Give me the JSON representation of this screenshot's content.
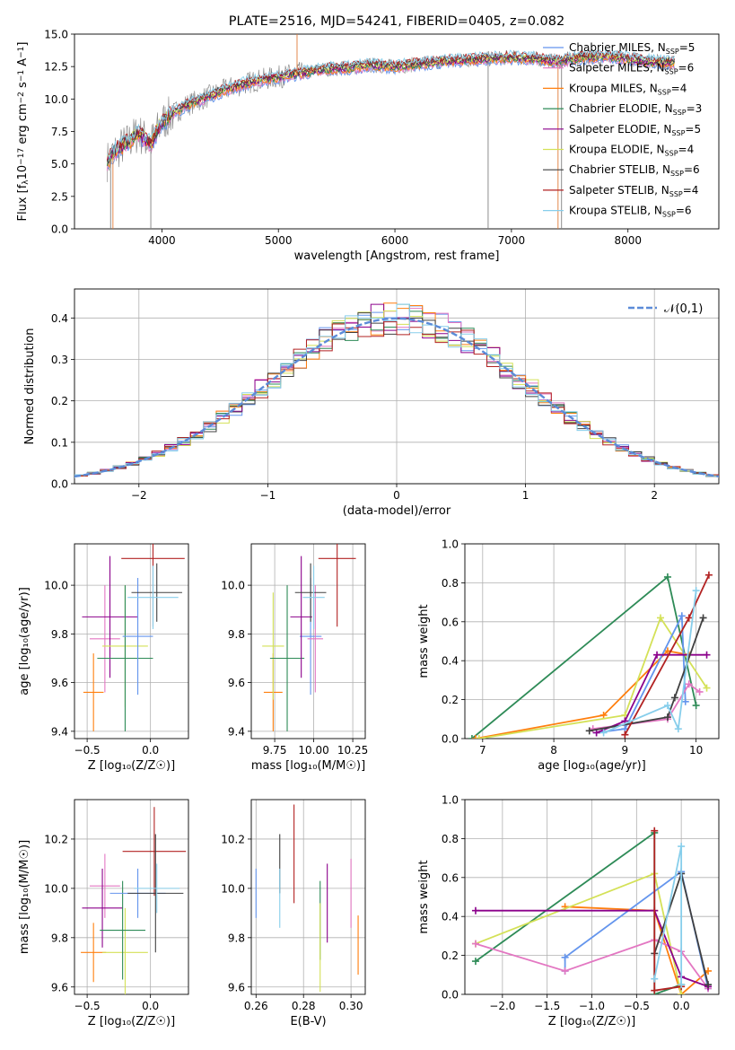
{
  "chart_data": [
    {
      "id": "spectrum",
      "type": "line",
      "title": "PLATE=2516, MJD=54241, FIBERID=0405, z=0.082",
      "xlabel": "wavelength [Angstrom, rest frame]",
      "ylabel_parts": [
        "Flux [f",
        "λ",
        "10",
        "−17",
        " erg cm",
        "−2",
        " s",
        "−1",
        " A",
        "−1",
        "]"
      ],
      "xlim": [
        3250,
        8780
      ],
      "ylim": [
        0,
        15
      ],
      "xticks": [
        4000,
        5000,
        6000,
        7000,
        8000
      ],
      "yticks": [
        0.0,
        2.5,
        5.0,
        7.5,
        10.0,
        12.5,
        15.0
      ],
      "grid": false,
      "legend_position": "top-right",
      "data_curve": {
        "name": "data",
        "color": "#808080",
        "x": [
          3530,
          3600,
          3700,
          3800,
          3900,
          4000,
          4100,
          4200,
          4400,
          4600,
          4800,
          5000,
          5200,
          5400,
          5600,
          5800,
          6000,
          6200,
          6400,
          6600,
          6800,
          7000,
          7200,
          7400,
          7600,
          7800,
          8000,
          8200,
          8400
        ],
        "y": [
          5.2,
          6.0,
          6.6,
          7.4,
          6.5,
          8.2,
          8.9,
          9.5,
          10.2,
          10.9,
          11.4,
          11.7,
          12.0,
          12.3,
          12.4,
          12.6,
          12.5,
          12.7,
          12.9,
          13.0,
          13.1,
          13.2,
          13.1,
          12.9,
          13.2,
          13.3,
          13.1,
          12.9,
          12.8
        ]
      },
      "legend": [
        {
          "name": "Chabrier MILES",
          "nssp": "5",
          "color": "#6495ed"
        },
        {
          "name": "Salpeter MILES",
          "nssp": "6",
          "color": "#e377c2"
        },
        {
          "name": "Kroupa MILES",
          "nssp": "4",
          "color": "#ff7f0e"
        },
        {
          "name": "Chabrier ELODIE",
          "nssp": "3",
          "color": "#2e8b57"
        },
        {
          "name": "Salpeter ELODIE",
          "nssp": "5",
          "color": "#8b008b"
        },
        {
          "name": "Kroupa ELODIE",
          "nssp": "4",
          "color": "#d4e157"
        },
        {
          "name": "Chabrier STELIB",
          "nssp": "6",
          "color": "#404040"
        },
        {
          "name": "Salpeter STELIB",
          "nssp": "4",
          "color": "#b22222"
        },
        {
          "name": "Kroupa STELIB",
          "nssp": "6",
          "color": "#87ceeb"
        }
      ]
    },
    {
      "id": "residuals",
      "type": "histogram",
      "xlabel": "(data-model)/error",
      "ylabel": "Normed distribution",
      "xlim": [
        -2.5,
        2.5
      ],
      "ylim": [
        0,
        0.47
      ],
      "xticks": [
        -2,
        -1,
        0,
        1,
        2
      ],
      "yticks": [
        0.0,
        0.1,
        0.2,
        0.3,
        0.4
      ],
      "grid": true,
      "legend_position": "top-right",
      "reference": {
        "label": "𝒩(0,1)",
        "color": "#5b8bd8",
        "mean": 0,
        "sigma": 1
      },
      "bin_width": 0.1,
      "approx_peak": 0.45
    },
    {
      "id": "z-age",
      "type": "errorbar",
      "xlabel": "Z [log₁₀(Z/Z☉)]",
      "ylabel": "age  [log₁₀(age/yr)]",
      "xlim": [
        -0.6,
        0.3
      ],
      "ylim": [
        9.37,
        10.17
      ],
      "xticks": [
        -0.5,
        0.0
      ],
      "yticks": [
        9.4,
        9.6,
        9.8,
        10.0
      ],
      "grid": true,
      "points": [
        {
          "color": "#ff7f0e",
          "x": -0.45,
          "xerr": 0.08,
          "y": 9.56,
          "yerr": 0.16
        },
        {
          "color": "#e377c2",
          "x": -0.36,
          "xerr": 0.12,
          "y": 9.78,
          "yerr": 0.22
        },
        {
          "color": "#8b008b",
          "x": -0.32,
          "xerr": 0.22,
          "y": 9.87,
          "yerr": 0.25
        },
        {
          "color": "#d4e157",
          "x": -0.2,
          "xerr": 0.18,
          "y": 9.75,
          "yerr": 0.25
        },
        {
          "color": "#2e8b57",
          "x": -0.2,
          "xerr": 0.22,
          "y": 9.7,
          "yerr": 0.3
        },
        {
          "color": "#6495ed",
          "x": -0.1,
          "xerr": 0.12,
          "y": 9.79,
          "yerr": 0.24
        },
        {
          "color": "#b22222",
          "x": 0.02,
          "xerr": 0.25,
          "y": 10.11,
          "yerr": 0.28
        },
        {
          "color": "#404040",
          "x": 0.05,
          "xerr": 0.2,
          "y": 9.97,
          "yerr": 0.12
        },
        {
          "color": "#87ceeb",
          "x": 0.02,
          "xerr": 0.2,
          "y": 9.95,
          "yerr": 0.13
        }
      ]
    },
    {
      "id": "mass-age",
      "type": "errorbar",
      "xlabel": "mass [log₁₀(M/M☉)]",
      "xlim": [
        9.6,
        10.33
      ],
      "ylim": [
        9.37,
        10.17
      ],
      "xticks": [
        9.75,
        10.0,
        10.25
      ],
      "xticklabels": [
        "9.75",
        "10.00",
        "10.25"
      ],
      "yticks": [
        9.4,
        9.6,
        9.8,
        10.0
      ],
      "grid": true,
      "points": [
        {
          "color": "#ff7f0e",
          "x": 9.74,
          "xerr": 0.06,
          "y": 9.56,
          "yerr": 0.16
        },
        {
          "color": "#d4e157",
          "x": 9.74,
          "xerr": 0.07,
          "y": 9.75,
          "yerr": 0.22
        },
        {
          "color": "#2e8b57",
          "x": 9.83,
          "xerr": 0.11,
          "y": 9.7,
          "yerr": 0.3
        },
        {
          "color": "#6495ed",
          "x": 9.98,
          "xerr": 0.07,
          "y": 9.79,
          "yerr": 0.24
        },
        {
          "color": "#e377c2",
          "x": 10.01,
          "xerr": 0.05,
          "y": 9.78,
          "yerr": 0.22
        },
        {
          "color": "#8b008b",
          "x": 9.92,
          "xerr": 0.07,
          "y": 9.87,
          "yerr": 0.25
        },
        {
          "color": "#b22222",
          "x": 10.15,
          "xerr": 0.12,
          "y": 10.11,
          "yerr": 0.28
        },
        {
          "color": "#404040",
          "x": 9.98,
          "xerr": 0.1,
          "y": 9.97,
          "yerr": 0.12
        },
        {
          "color": "#87ceeb",
          "x": 10.0,
          "xerr": 0.07,
          "y": 9.95,
          "yerr": 0.13
        }
      ]
    },
    {
      "id": "age-weight",
      "type": "line",
      "xlabel": "age  [log₁₀(age/yr)]",
      "ylabel": "mass weight",
      "xlim": [
        6.75,
        10.32
      ],
      "ylim": [
        0,
        1
      ],
      "xticks": [
        7,
        8,
        9,
        10
      ],
      "yticks": [
        0.0,
        0.2,
        0.4,
        0.6,
        0.8,
        1.0
      ],
      "grid": true,
      "series": [
        {
          "color": "#2e8b57",
          "x": [
            6.85,
            9.6,
            10.0
          ],
          "y": [
            0.0,
            0.83,
            0.17
          ]
        },
        {
          "color": "#ff7f0e",
          "x": [
            6.9,
            8.7,
            9.6,
            9.9
          ],
          "y": [
            0.0,
            0.12,
            0.45,
            0.43
          ]
        },
        {
          "color": "#d4e157",
          "x": [
            6.95,
            9.0,
            9.5,
            10.15
          ],
          "y": [
            0.0,
            0.12,
            0.62,
            0.26
          ]
        },
        {
          "color": "#6495ed",
          "x": [
            8.6,
            9.0,
            9.8,
            9.85
          ],
          "y": [
            0.03,
            0.05,
            0.63,
            0.19
          ]
        },
        {
          "color": "#e377c2",
          "x": [
            8.55,
            9.6,
            9.9,
            10.05
          ],
          "y": [
            0.05,
            0.1,
            0.28,
            0.24
          ]
        },
        {
          "color": "#8b008b",
          "x": [
            8.6,
            9.0,
            9.45,
            10.15
          ],
          "y": [
            0.03,
            0.09,
            0.43,
            0.43
          ]
        },
        {
          "color": "#404040",
          "x": [
            8.5,
            9.6,
            9.7,
            10.1
          ],
          "y": [
            0.04,
            0.11,
            0.21,
            0.62
          ]
        },
        {
          "color": "#b22222",
          "x": [
            9.0,
            9.9,
            10.18
          ],
          "y": [
            0.02,
            0.62,
            0.84
          ]
        },
        {
          "color": "#87ceeb",
          "x": [
            8.7,
            9.6,
            9.75,
            10.0
          ],
          "y": [
            0.03,
            0.17,
            0.05,
            0.76
          ]
        }
      ]
    },
    {
      "id": "z-mass",
      "type": "errorbar",
      "xlabel": "Z [log₁₀(Z/Z☉)]",
      "ylabel": "mass [log₁₀(M/M☉)]",
      "xlim": [
        -0.6,
        0.3
      ],
      "ylim": [
        9.57,
        10.36
      ],
      "xticks": [
        -0.5,
        0.0
      ],
      "yticks": [
        9.6,
        9.8,
        10.0,
        10.2
      ],
      "grid": true,
      "points": [
        {
          "color": "#ff7f0e",
          "x": -0.45,
          "xerr": 0.1,
          "y": 9.74,
          "yerr": 0.12
        },
        {
          "color": "#e377c2",
          "x": -0.36,
          "xerr": 0.12,
          "y": 10.01,
          "yerr": 0.13
        },
        {
          "color": "#8b008b",
          "x": -0.38,
          "xerr": 0.16,
          "y": 9.92,
          "yerr": 0.16
        },
        {
          "color": "#d4e157",
          "x": -0.2,
          "xerr": 0.18,
          "y": 9.74,
          "yerr": 0.18
        },
        {
          "color": "#2e8b57",
          "x": -0.22,
          "xerr": 0.18,
          "y": 9.83,
          "yerr": 0.2
        },
        {
          "color": "#6495ed",
          "x": -0.1,
          "xerr": 0.22,
          "y": 9.98,
          "yerr": 0.1
        },
        {
          "color": "#b22222",
          "x": 0.03,
          "xerr": 0.25,
          "y": 10.15,
          "yerr": 0.18
        },
        {
          "color": "#404040",
          "x": 0.04,
          "xerr": 0.22,
          "y": 9.98,
          "yerr": 0.24
        },
        {
          "color": "#87ceeb",
          "x": 0.05,
          "xerr": 0.18,
          "y": 10.0,
          "yerr": 0.1
        }
      ]
    },
    {
      "id": "ebv-mass",
      "type": "errorbar",
      "xlabel": "E(B-V)",
      "xlim": [
        0.258,
        0.306
      ],
      "ylim": [
        9.57,
        10.36
      ],
      "xticks": [
        0.26,
        0.28,
        0.3
      ],
      "xticklabels": [
        "0.26",
        "0.28",
        "0.30"
      ],
      "yticks": [
        9.6,
        9.8,
        10.0,
        10.2
      ],
      "grid": true,
      "points": [
        {
          "color": "#6495ed",
          "x": 0.26,
          "y": 9.98,
          "yerr": 0.1
        },
        {
          "color": "#404040",
          "x": 0.27,
          "y": 10.1,
          "yerr": 0.12
        },
        {
          "color": "#87ceeb",
          "x": 0.27,
          "y": 9.96,
          "yerr": 0.12
        },
        {
          "color": "#b22222",
          "x": 0.276,
          "y": 10.14,
          "yerr": 0.2
        },
        {
          "color": "#2e8b57",
          "x": 0.287,
          "y": 9.87,
          "yerr": 0.16
        },
        {
          "color": "#d4e157",
          "x": 0.287,
          "y": 9.76,
          "yerr": 0.18
        },
        {
          "color": "#8b008b",
          "x": 0.29,
          "y": 9.94,
          "yerr": 0.16
        },
        {
          "color": "#e377c2",
          "x": 0.3,
          "y": 9.98,
          "yerr": 0.14
        },
        {
          "color": "#ff7f0e",
          "x": 0.303,
          "y": 9.77,
          "yerr": 0.12
        }
      ]
    },
    {
      "id": "z-weight",
      "type": "line",
      "xlabel": "Z [log₁₀(Z/Z☉)]",
      "ylabel": "mass weight",
      "xlim": [
        -2.42,
        0.42
      ],
      "ylim": [
        0,
        1
      ],
      "xticks": [
        -2.0,
        -1.5,
        -1.0,
        -0.5,
        0.0
      ],
      "xticklabels": [
        "−2.0",
        "−1.5",
        "−1.0",
        "−0.5",
        "0.0"
      ],
      "yticks": [
        0.0,
        0.2,
        0.4,
        0.6,
        0.8,
        1.0
      ],
      "grid": true,
      "series": [
        {
          "color": "#2e8b57",
          "x": [
            -2.3,
            -0.3,
            -0.3,
            0.0
          ],
          "y": [
            0.17,
            0.83,
            0.0,
            0.05
          ]
        },
        {
          "color": "#ff7f0e",
          "x": [
            -1.3,
            -0.3,
            0.0,
            0.3
          ],
          "y": [
            0.45,
            0.43,
            0.0,
            0.12
          ]
        },
        {
          "color": "#d4e157",
          "x": [
            -2.3,
            -0.3,
            0.0
          ],
          "y": [
            0.26,
            0.62,
            0.0
          ]
        },
        {
          "color": "#6495ed",
          "x": [
            -1.3,
            -1.3,
            0.0,
            0.3
          ],
          "y": [
            0.12,
            0.19,
            0.63,
            0.03
          ]
        },
        {
          "color": "#e377c2",
          "x": [
            -2.3,
            -1.3,
            -0.3,
            0.0,
            0.3
          ],
          "y": [
            0.26,
            0.12,
            0.28,
            0.22,
            0.03
          ]
        },
        {
          "color": "#8b008b",
          "x": [
            -2.3,
            -0.3,
            0.0,
            0.3
          ],
          "y": [
            0.43,
            0.43,
            0.09,
            0.04
          ]
        },
        {
          "color": "#404040",
          "x": [
            -0.3,
            0.0,
            0.3
          ],
          "y": [
            0.21,
            0.62,
            0.05
          ]
        },
        {
          "color": "#b22222",
          "x": [
            -0.3,
            -0.3,
            0.0
          ],
          "y": [
            0.84,
            0.02,
            0.04
          ]
        },
        {
          "color": "#87ceeb",
          "x": [
            -0.3,
            0.0,
            0.0
          ],
          "y": [
            0.08,
            0.76,
            0.05
          ]
        }
      ]
    }
  ]
}
